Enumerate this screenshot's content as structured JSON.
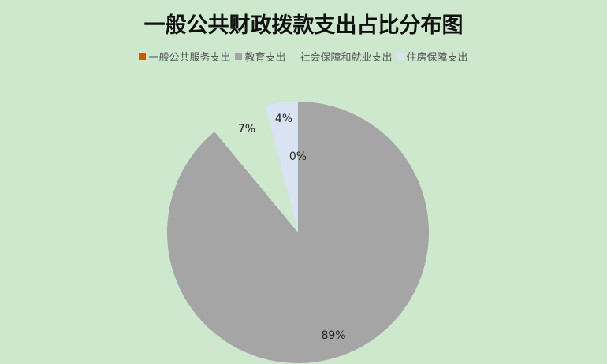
{
  "chart_data": {
    "type": "pie",
    "title": "一般公共财政拨款支出占比分布图",
    "legend_position": "top",
    "categories": [
      "一般公共服务支出",
      "教育支出",
      "社会保障和就业支出",
      "住房保障支出"
    ],
    "values": [
      0,
      89,
      7,
      4
    ],
    "data_labels": [
      "0%",
      "89%",
      "7%",
      "4%"
    ],
    "colors": [
      "#c55a11",
      "#a5a5a5",
      "#cde8cd",
      "#dae3f3"
    ],
    "start_angle": "top, clockwise"
  }
}
